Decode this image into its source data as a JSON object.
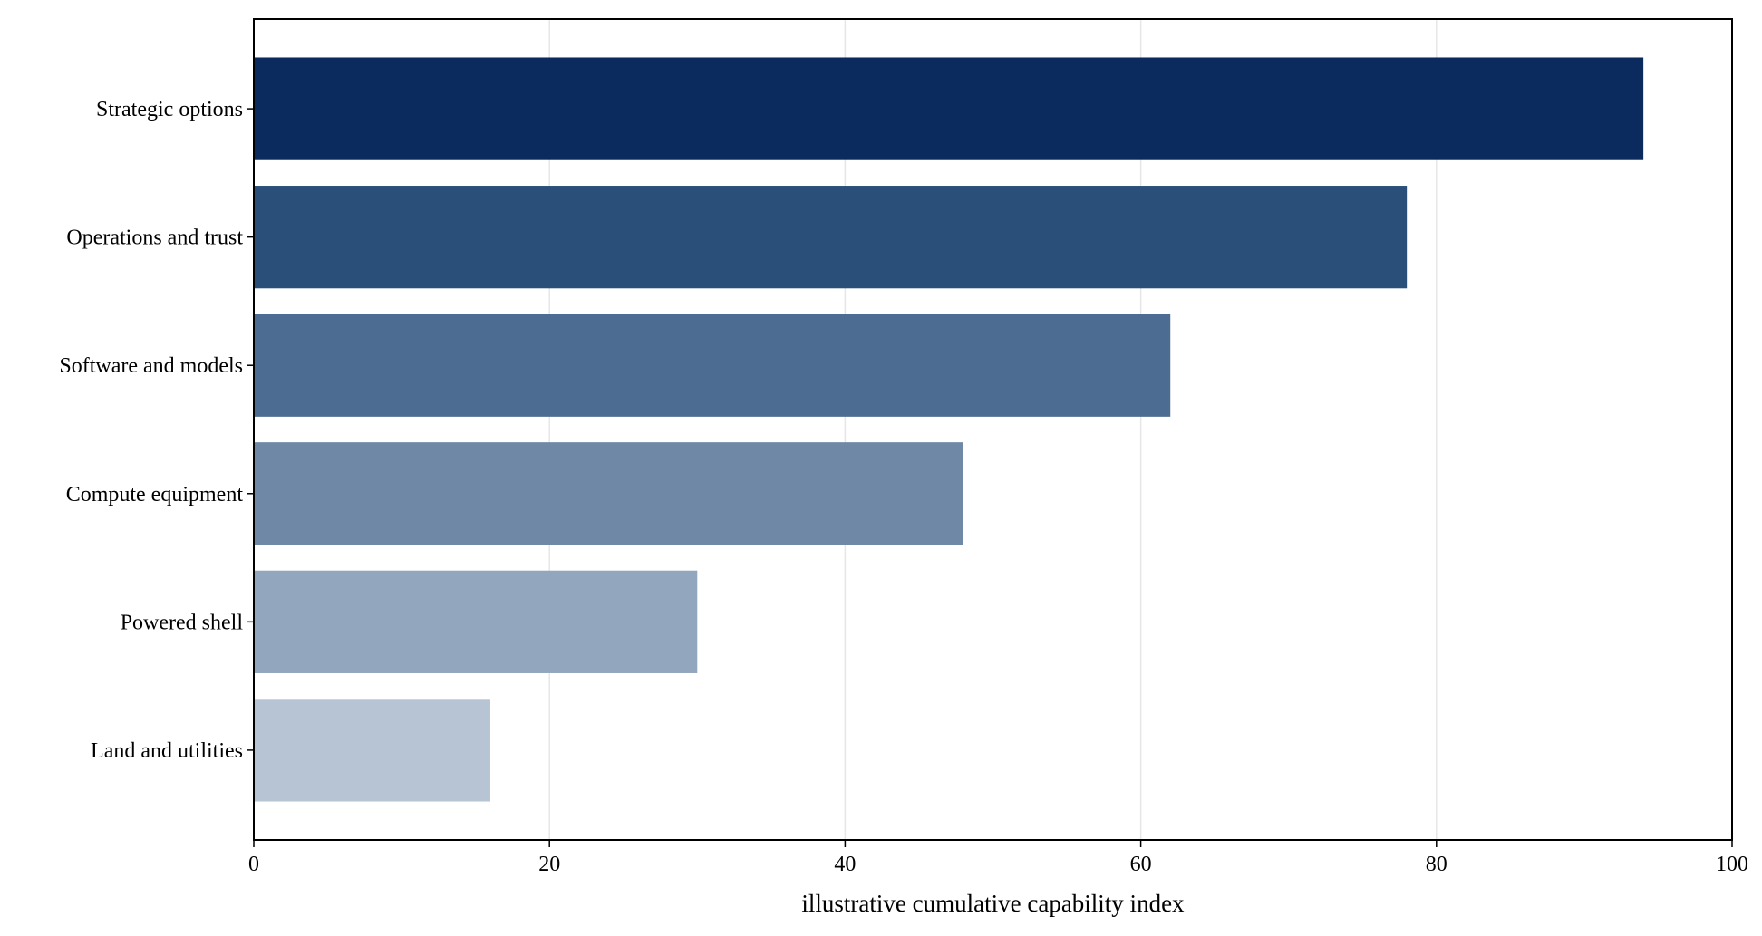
{
  "chart_data": {
    "type": "bar",
    "orientation": "horizontal",
    "title": "",
    "xlabel": "illustrative cumulative capability index",
    "ylabel": "",
    "xlim": [
      0,
      100
    ],
    "xticks": [
      0,
      20,
      40,
      60,
      80,
      100
    ],
    "grid": "vertical",
    "categories": [
      "Land and utilities",
      "Powered shell",
      "Compute equipment",
      "Software and models",
      "Operations and trust",
      "Strategic options"
    ],
    "values": [
      16,
      30,
      48,
      62,
      78,
      94
    ],
    "colors": [
      "#b7c4d3",
      "#92a6bd",
      "#6f88a5",
      "#4d6c91",
      "#2a5079",
      "#0b2a5e"
    ]
  }
}
